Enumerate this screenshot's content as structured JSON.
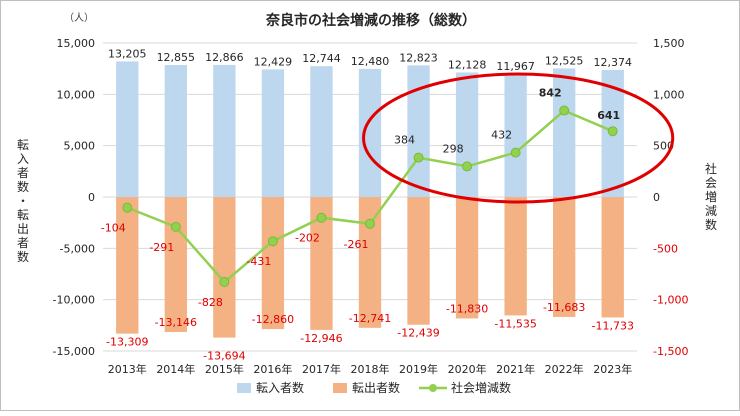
{
  "chart_data": {
    "type": "bar",
    "title": "奈良市の社会増減の推移（総数）",
    "unit_label": "（人）",
    "ylabel_left": "転入者数・転出者数",
    "ylabel_right": "社会増減数",
    "categories": [
      "2013年",
      "2014年",
      "2015年",
      "2016年",
      "2017年",
      "2018年",
      "2019年",
      "2020年",
      "2021年",
      "2022年",
      "2023年"
    ],
    "ylim_left": [
      -15000,
      15000
    ],
    "yticks_left": [
      "15,000",
      "10,000",
      "5,000",
      "0",
      "-5,000",
      "-10,000",
      "-15,000"
    ],
    "ylim_right": [
      -1500,
      1500
    ],
    "yticks_right": [
      "1,500",
      "1,000",
      "500",
      "0",
      "-500",
      "-1,000",
      "-1,500"
    ],
    "series": [
      {
        "name": "転入者数",
        "kind": "bar",
        "axis": "left",
        "color": "#bdd7ee",
        "values": [
          13205,
          12855,
          12866,
          12429,
          12744,
          12480,
          12823,
          12128,
          11967,
          12525,
          12374
        ],
        "labels": [
          "13,205",
          "12,855",
          "12,866",
          "12,429",
          "12,744",
          "12,480",
          "12,823",
          "12,128",
          "11,967",
          "12,525",
          "12,374"
        ]
      },
      {
        "name": "転出者数",
        "kind": "bar",
        "axis": "left",
        "color": "#f4b183",
        "values": [
          -13309,
          -13146,
          -13694,
          -12860,
          -12946,
          -12741,
          -12439,
          -11830,
          -11535,
          -11683,
          -11733
        ],
        "labels": [
          "-13,309",
          "-13,146",
          "-13,694",
          "-12,860",
          "-12,946",
          "-12,741",
          "-12,439",
          "-11,830",
          "-11,535",
          "-11,683",
          "-11,733"
        ]
      },
      {
        "name": "社会増減数",
        "kind": "line",
        "axis": "right",
        "color": "#92d050",
        "values": [
          -104,
          -291,
          -828,
          -431,
          -202,
          -261,
          384,
          298,
          432,
          842,
          641
        ],
        "labels": [
          "-104",
          "-291",
          "-828",
          "-431",
          "-202",
          "-261",
          "384",
          "298",
          "432",
          "842",
          "641"
        ]
      }
    ],
    "highlight": {
      "shape": "ellipse",
      "color": "#e00000",
      "categories": [
        "2019年",
        "2020年",
        "2021年",
        "2022年",
        "2023年"
      ],
      "emphasized_label": "641"
    },
    "grid": true,
    "legend": "bottom"
  }
}
